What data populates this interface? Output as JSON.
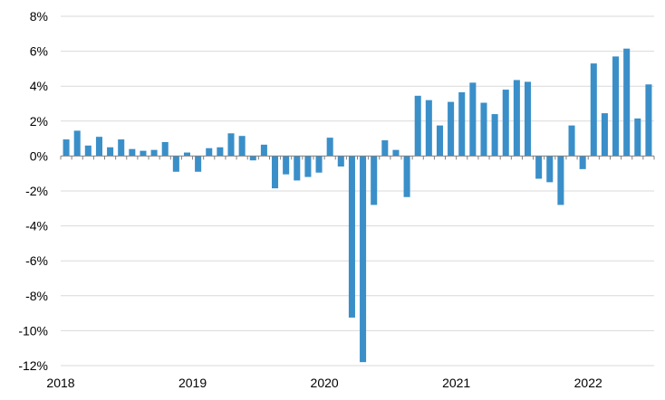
{
  "chart_data": {
    "type": "bar",
    "title": "",
    "xlabel": "",
    "ylabel": "",
    "x_tick_labels": [
      "2018",
      "2019",
      "2020",
      "2021",
      "2022"
    ],
    "y_tick_labels": [
      "8%",
      "6%",
      "4%",
      "2%",
      "0%",
      "-2%",
      "-4%",
      "-6%",
      "-8%",
      "-10%",
      "-12%"
    ],
    "y_ticks": [
      8,
      6,
      4,
      2,
      0,
      -2,
      -4,
      -6,
      -8,
      -10,
      -12
    ],
    "ylim": [
      -12,
      8
    ],
    "grid": true,
    "bar_color": "#3a8fc9",
    "start_month": "2018-01",
    "values": [
      0.95,
      1.45,
      0.6,
      1.1,
      0.5,
      0.95,
      0.4,
      0.3,
      0.35,
      0.8,
      -0.9,
      0.2,
      -0.9,
      0.45,
      0.5,
      1.3,
      1.15,
      -0.25,
      0.65,
      -1.85,
      -1.05,
      -1.4,
      -1.2,
      -0.95,
      1.05,
      -0.6,
      -9.25,
      -11.8,
      -2.8,
      0.9,
      0.35,
      -2.35,
      3.45,
      3.2,
      1.75,
      3.1,
      3.65,
      4.2,
      3.05,
      2.4,
      3.8,
      4.35,
      4.25,
      -1.3,
      -1.5,
      -2.8,
      1.75,
      -0.75,
      5.3,
      2.45,
      5.7,
      6.15,
      2.15,
      4.1
    ]
  }
}
